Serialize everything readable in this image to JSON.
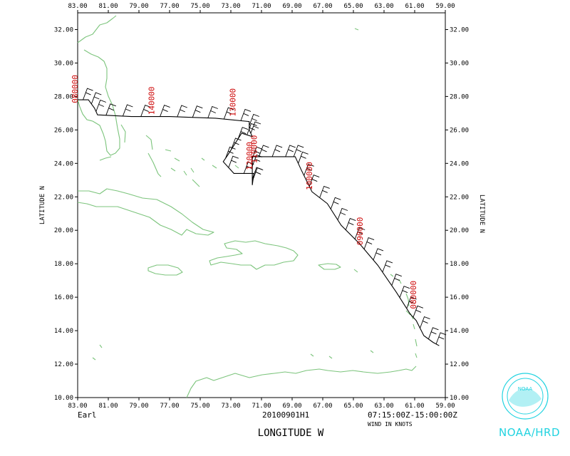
{
  "storm_name": "Earl",
  "flight_id": "20100901H1",
  "time_range": "07:15:00Z-15:00:00Z",
  "wind_units": "WIND IN KNOTS",
  "credit": "NOAA/HRD",
  "logo_text": "NOAA",
  "colors": {
    "coast": "#7cc47c",
    "track": "#000000",
    "time_label": "#cc0000",
    "logo": "#22d3e0"
  },
  "axes": {
    "xlabel": "LONGITUDE  W",
    "ylabel_left": "LATITUDE  N",
    "ylabel_right": "LATITUDE  N",
    "x_ticks": [
      "83.00",
      "81.00",
      "79.00",
      "77.00",
      "75.00",
      "73.00",
      "71.00",
      "69.00",
      "67.00",
      "65.00",
      "63.00",
      "61.00",
      "59.00"
    ],
    "y_ticks": [
      "10.00",
      "12.00",
      "14.00",
      "16.00",
      "18.00",
      "20.00",
      "22.00",
      "24.00",
      "26.00",
      "28.00",
      "30.00",
      "32.00"
    ]
  },
  "chart_data": {
    "type": "map",
    "xlim_lon_w": [
      83,
      59
    ],
    "ylim_lat_n": [
      10,
      33
    ],
    "track": [
      [
        83.0,
        27.8
      ],
      [
        82.3,
        27.8
      ],
      [
        81.9,
        27.3
      ],
      [
        81.7,
        26.9
      ],
      [
        79.5,
        26.8
      ],
      [
        77.0,
        26.8
      ],
      [
        74.0,
        26.7
      ],
      [
        71.8,
        26.5
      ],
      [
        71.8,
        26.0
      ],
      [
        71.6,
        25.6
      ],
      [
        72.3,
        25.8
      ],
      [
        73.2,
        24.5
      ],
      [
        73.5,
        24.1
      ],
      [
        72.8,
        23.4
      ],
      [
        71.5,
        23.4
      ],
      [
        71.6,
        22.7
      ],
      [
        71.6,
        24.2
      ],
      [
        71.6,
        24.4
      ],
      [
        69.0,
        24.4
      ],
      [
        68.8,
        24.4
      ],
      [
        68.4,
        23.6
      ],
      [
        67.7,
        22.3
      ],
      [
        66.7,
        21.6
      ],
      [
        65.8,
        20.3
      ],
      [
        64.6,
        19.2
      ],
      [
        63.4,
        17.9
      ],
      [
        62.2,
        16.3
      ],
      [
        61.3,
        15.0
      ],
      [
        60.9,
        14.6
      ],
      [
        60.4,
        13.7
      ],
      [
        59.8,
        13.3
      ],
      [
        59.4,
        13.1
      ]
    ],
    "time_labels": [
      {
        "text": "080000",
        "lon": 83.0,
        "lat": 27.6
      },
      {
        "text": "140000",
        "lon": 78.0,
        "lat": 26.9
      },
      {
        "text": "130000",
        "lon": 72.7,
        "lat": 26.8
      },
      {
        "text": "120000",
        "lon": 71.6,
        "lat": 23.6
      },
      {
        "text": "110000",
        "lon": 71.3,
        "lat": 24.0
      },
      {
        "text": "100000",
        "lon": 67.7,
        "lat": 22.4
      },
      {
        "text": "090000",
        "lon": 64.4,
        "lat": 19.1
      },
      {
        "text": "080000",
        "lon": 60.9,
        "lat": 15.3
      }
    ]
  }
}
